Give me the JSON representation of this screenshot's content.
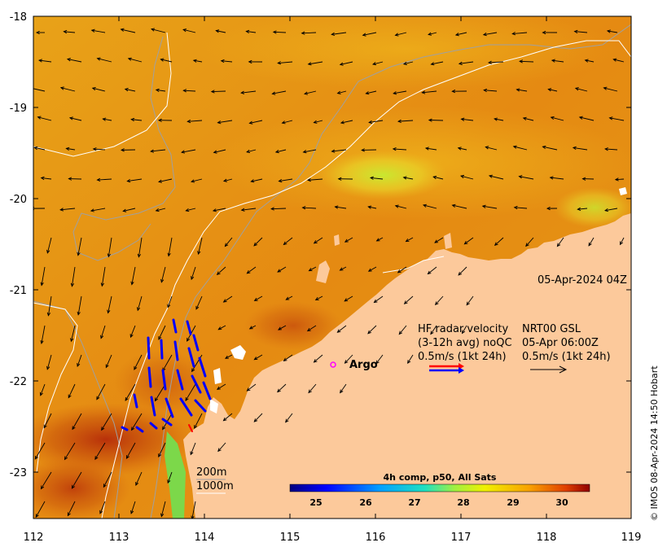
{
  "map": {
    "timestamp": "05-Apr-2024 04Z",
    "argo_label": "Argo",
    "x_ticks": [
      "112",
      "113",
      "114",
      "115",
      "116",
      "117",
      "118",
      "119"
    ],
    "y_ticks": [
      "-18",
      "-19",
      "-20",
      "-21",
      "-22",
      "-23"
    ],
    "lon_range": [
      112,
      119
    ],
    "lat_range": [
      -23.5,
      -18
    ],
    "argo_position": {
      "lon": 115.5,
      "lat": -21.85
    }
  },
  "legend": {
    "hf_title": "HF radar velocity",
    "hf_subtitle": "(3-12h avg) noQC",
    "hf_scale": "0.5m/s (1kt 24h)",
    "model_title": "NRT00 GSL",
    "model_time": "05-Apr 06:00Z",
    "model_scale": "0.5m/s (1kt 24h)"
  },
  "bathymetry": {
    "label_200": "200m",
    "label_1000": "1000m"
  },
  "colorbar": {
    "title": "4h comp, p50, All Sats",
    "ticks": [
      "25",
      "26",
      "27",
      "28",
      "29",
      "30"
    ],
    "range": [
      24.5,
      30.5
    ]
  },
  "credit": "© IMOS 08-Apr-2024 14:50 Hobart",
  "colors": {
    "land": "#fcc99b",
    "hf_vectors": "#0000ff",
    "hf_vectors_alt": "#ff0000",
    "argo_marker": "#ff00ff",
    "model_vectors": "#000000"
  }
}
